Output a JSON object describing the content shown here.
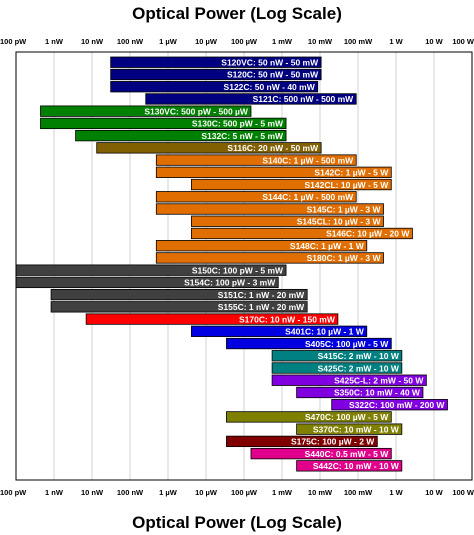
{
  "chart_data": {
    "type": "bar",
    "orientation": "horizontal-range",
    "title": "Optical Power (Log Scale)",
    "xscale": "log",
    "xlim": [
      "100 pW",
      "1000 W"
    ],
    "grid": true,
    "tick_labels": [
      "100 pW",
      "1 nW",
      "10 nW",
      "100 nW",
      "1 µW",
      "10 µW",
      "100 µW",
      "1 mW",
      "10 mW",
      "100 mW",
      "1 W",
      "10 W",
      "100 W"
    ],
    "series": [
      {
        "label": "S120VC: 50 nW - 50 mW",
        "min_w": 5e-08,
        "max_w": 0.05,
        "color": "#000080"
      },
      {
        "label": "S120C: 50 nW - 50 mW",
        "min_w": 5e-08,
        "max_w": 0.05,
        "color": "#000080"
      },
      {
        "label": "S122C: 50 nW - 40 mW",
        "min_w": 5e-08,
        "max_w": 0.04,
        "color": "#000080"
      },
      {
        "label": "S121C: 500 nW - 500 mW",
        "min_w": 5e-07,
        "max_w": 0.5,
        "color": "#000080"
      },
      {
        "label": "S130VC: 500 pW - 500 µW",
        "min_w": 5e-10,
        "max_w": 0.0005,
        "color": "#008000"
      },
      {
        "label": "S130C: 500 pW - 5 mW",
        "min_w": 5e-10,
        "max_w": 0.005,
        "color": "#008000"
      },
      {
        "label": "S132C: 5 nW - 5 mW",
        "min_w": 5e-09,
        "max_w": 0.005,
        "color": "#008000"
      },
      {
        "label": "S116C: 20 nW - 50 mW",
        "min_w": 2e-08,
        "max_w": 0.05,
        "color": "#806000"
      },
      {
        "label": "S140C: 1 µW - 500 mW",
        "min_w": 1e-06,
        "max_w": 0.5,
        "color": "#E06E00"
      },
      {
        "label": "S142C: 1 µW - 5 W",
        "min_w": 1e-06,
        "max_w": 5,
        "color": "#E06E00"
      },
      {
        "label": "S142CL: 10 µW - 5 W",
        "min_w": 1e-05,
        "max_w": 5,
        "color": "#E06E00"
      },
      {
        "label": "S144C: 1 µW - 500 mW",
        "min_w": 1e-06,
        "max_w": 0.5,
        "color": "#E06E00"
      },
      {
        "label": "S145C: 1 µW - 3 W",
        "min_w": 1e-06,
        "max_w": 3,
        "color": "#E06E00"
      },
      {
        "label": "S145CL: 10 µW - 3 W",
        "min_w": 1e-05,
        "max_w": 3,
        "color": "#E06E00"
      },
      {
        "label": "S146C: 10 µW - 20 W",
        "min_w": 1e-05,
        "max_w": 20,
        "color": "#E06E00"
      },
      {
        "label": "S148C: 1 µW - 1 W",
        "min_w": 1e-06,
        "max_w": 1,
        "color": "#E06E00"
      },
      {
        "label": "S180C: 1 µW - 3 W",
        "min_w": 1e-06,
        "max_w": 3,
        "color": "#E06E00"
      },
      {
        "label": "S150C: 100 pW - 5 mW",
        "min_w": 1e-10,
        "max_w": 0.005,
        "color": "#404040"
      },
      {
        "label": "S154C: 100 pW - 3 mW",
        "min_w": 1e-10,
        "max_w": 0.003,
        "color": "#404040"
      },
      {
        "label": "S151C: 1 nW - 20 mW",
        "min_w": 1e-09,
        "max_w": 0.02,
        "color": "#404040"
      },
      {
        "label": "S155C: 1 nW - 20 mW",
        "min_w": 1e-09,
        "max_w": 0.02,
        "color": "#404040"
      },
      {
        "label": "S170C: 10 nW - 150 mW",
        "min_w": 1e-08,
        "max_w": 0.15,
        "color": "#FF0000"
      },
      {
        "label": "S401C: 10 µW - 1 W",
        "min_w": 1e-05,
        "max_w": 1,
        "color": "#0000E0"
      },
      {
        "label": "S405C: 100 µW - 5 W",
        "min_w": 0.0001,
        "max_w": 5,
        "color": "#0000E0"
      },
      {
        "label": "S415C: 2 mW - 10 W",
        "min_w": 0.002,
        "max_w": 10,
        "color": "#008080"
      },
      {
        "label": "S425C: 2 mW - 10 W",
        "min_w": 0.002,
        "max_w": 10,
        "color": "#008080"
      },
      {
        "label": "S425C-L: 2 mW - 50 W",
        "min_w": 0.002,
        "max_w": 50,
        "color": "#8000E0"
      },
      {
        "label": "S350C: 10 mW - 40 W",
        "min_w": 0.01,
        "max_w": 40,
        "color": "#8000E0"
      },
      {
        "label": "S322C: 100 mW - 200 W",
        "min_w": 0.1,
        "max_w": 200,
        "color": "#8000E0"
      },
      {
        "label": "S470C: 100 µW - 5 W",
        "min_w": 0.0001,
        "max_w": 5,
        "color": "#808000"
      },
      {
        "label": "S370C: 10 mW - 10 W",
        "min_w": 0.01,
        "max_w": 10,
        "color": "#808000"
      },
      {
        "label": "S175C: 100 µW - 2 W",
        "min_w": 0.0001,
        "max_w": 2,
        "color": "#800000"
      },
      {
        "label": "S440C: 0.5 mW - 5 W",
        "min_w": 0.0005,
        "max_w": 5,
        "color": "#E0008C"
      },
      {
        "label": "S442C: 10 mW - 10 W",
        "min_w": 0.01,
        "max_w": 10,
        "color": "#E0008C"
      }
    ]
  }
}
